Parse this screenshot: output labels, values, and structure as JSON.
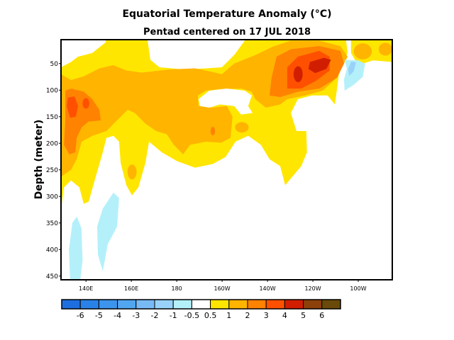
{
  "chart_data": {
    "type": "heatmap",
    "subtype": "filled-contour",
    "title": "Equatorial Temperature Anomaly (°C)",
    "subtitle": "Pentad centered on 17 JUL 2018",
    "xlabel": "",
    "ylabel": "Depth (meter)",
    "xlim": [
      129,
      275
    ],
    "ylim": [
      5,
      457
    ],
    "y_inverted": true,
    "x_ticks": [
      {
        "value": 140,
        "label": "140E"
      },
      {
        "value": 160,
        "label": "160E"
      },
      {
        "value": 180,
        "label": "180"
      },
      {
        "value": 200,
        "label": "160W"
      },
      {
        "value": 220,
        "label": "140W"
      },
      {
        "value": 240,
        "label": "120W"
      },
      {
        "value": 260,
        "label": "100W"
      }
    ],
    "y_ticks": [
      {
        "value": 50,
        "label": "50"
      },
      {
        "value": 100,
        "label": "100"
      },
      {
        "value": 150,
        "label": "150"
      },
      {
        "value": 200,
        "label": "200"
      },
      {
        "value": 250,
        "label": "250"
      },
      {
        "value": 300,
        "label": "300"
      },
      {
        "value": 350,
        "label": "350"
      },
      {
        "value": 400,
        "label": "400"
      },
      {
        "value": 450,
        "label": "450"
      }
    ],
    "colorbar": {
      "labels": [
        "-6",
        "-5",
        "-4",
        "-3",
        "-2",
        "-1",
        "-0.5",
        "0.5",
        "1",
        "2",
        "3",
        "4",
        "5",
        "6"
      ],
      "colors": [
        "#1f6ee0",
        "#2a82e8",
        "#3c94ec",
        "#52a6f0",
        "#78baf6",
        "#98d2fa",
        "#b4f0fa",
        "#ffffff",
        "#ffe600",
        "#ffb400",
        "#ff8200",
        "#ff5000",
        "#d21e00",
        "#8c400a",
        "#6a4a0a"
      ]
    },
    "regions": [
      {
        "level": "0.5 to 1",
        "color": "#ffe600",
        "shape": "polygon",
        "points": [
          [
            129,
            57
          ],
          [
            133.4,
            47
          ],
          [
            136.5,
            37
          ],
          [
            142.8,
            30
          ],
          [
            148.7,
            10
          ],
          [
            148.7,
            5
          ],
          [
            167.1,
            5
          ],
          [
            168.4,
            43
          ],
          [
            172.4,
            57
          ],
          [
            183.4,
            61
          ],
          [
            192.8,
            59
          ],
          [
            199.9,
            57
          ],
          [
            205.3,
            34
          ],
          [
            210.3,
            5
          ],
          [
            254.6,
            5
          ],
          [
            255.3,
            30
          ],
          [
            251.5,
            70
          ],
          [
            249.7,
            127
          ],
          [
            246.5,
            110
          ],
          [
            239.6,
            110
          ],
          [
            233.4,
            117
          ],
          [
            230.3,
            143
          ],
          [
            232.8,
            177
          ],
          [
            237.1,
            177
          ],
          [
            237.4,
            217
          ],
          [
            234.9,
            243
          ],
          [
            227.8,
            279
          ],
          [
            225.6,
            243
          ],
          [
            220.9,
            230
          ],
          [
            217.1,
            203
          ],
          [
            211.5,
            186
          ],
          [
            205.9,
            197
          ],
          [
            201.5,
            226
          ],
          [
            195.9,
            239
          ],
          [
            188.1,
            246
          ],
          [
            180.3,
            234
          ],
          [
            173.4,
            217
          ],
          [
            167.8,
            197
          ],
          [
            166.2,
            237
          ],
          [
            163.1,
            283
          ],
          [
            160.3,
            298
          ],
          [
            157.8,
            279
          ],
          [
            155.3,
            237
          ],
          [
            154.6,
            197
          ],
          [
            152.1,
            186
          ],
          [
            149,
            190
          ],
          [
            147.4,
            217
          ],
          [
            144.3,
            263
          ],
          [
            141.2,
            310
          ],
          [
            139,
            314
          ],
          [
            137.1,
            283
          ],
          [
            133.4,
            270
          ],
          [
            130.3,
            283
          ],
          [
            129,
            325
          ]
        ]
      },
      {
        "level": "0.5 to 1",
        "color": "#ffe600",
        "shape": "polygon",
        "points": [
          [
            256.8,
            5
          ],
          [
            275,
            5
          ],
          [
            275,
            47
          ],
          [
            266.5,
            44
          ],
          [
            259.9,
            53
          ],
          [
            256.8,
            30
          ]
        ]
      },
      {
        "level": "1 to 2",
        "color": "#ffb400",
        "shape": "polygon",
        "points": [
          [
            129,
            70
          ],
          [
            133.4,
            81
          ],
          [
            139,
            74
          ],
          [
            145.9,
            59
          ],
          [
            152.1,
            53
          ],
          [
            157.8,
            63
          ],
          [
            164.6,
            67
          ],
          [
            177.1,
            61
          ],
          [
            188.1,
            59
          ],
          [
            195.9,
            66
          ],
          [
            199.9,
            70
          ],
          [
            205.3,
            50
          ],
          [
            214.6,
            34
          ],
          [
            222.4,
            18
          ],
          [
            230.3,
            7
          ],
          [
            242.8,
            7
          ],
          [
            252.1,
            17
          ],
          [
            255.3,
            37
          ],
          [
            252.1,
            63
          ],
          [
            249,
            83
          ],
          [
            244.3,
            101
          ],
          [
            236.5,
            110
          ],
          [
            228.7,
            117
          ],
          [
            225.6,
            127
          ],
          [
            219.3,
            133
          ],
          [
            214.6,
            117
          ],
          [
            213.1,
            103
          ],
          [
            208.4,
            97
          ],
          [
            199,
            98
          ],
          [
            192.8,
            101
          ],
          [
            189.3,
            110
          ],
          [
            189.6,
            130
          ],
          [
            195.9,
            133
          ],
          [
            202.1,
            130
          ],
          [
            204.6,
            150
          ],
          [
            203.7,
            190
          ],
          [
            199.6,
            199
          ],
          [
            192.8,
            197
          ],
          [
            185.9,
            203
          ],
          [
            182.8,
            221
          ],
          [
            178.7,
            203
          ],
          [
            175.6,
            183
          ],
          [
            170.9,
            177
          ],
          [
            166.2,
            163
          ],
          [
            161.5,
            143
          ],
          [
            158.4,
            137
          ],
          [
            155.3,
            150
          ],
          [
            149,
            177
          ],
          [
            142.8,
            186
          ],
          [
            138.1,
            197
          ],
          [
            135.9,
            230
          ],
          [
            133.4,
            250
          ],
          [
            129,
            263
          ]
        ]
      },
      {
        "level": "< 0.5",
        "color": "#ffffff",
        "shape": "polygon",
        "points": [
          [
            189.6,
            117
          ],
          [
            194.3,
            101
          ],
          [
            202.1,
            97
          ],
          [
            210,
            101
          ],
          [
            213.1,
            110
          ],
          [
            211.5,
            130
          ],
          [
            213.4,
            143
          ],
          [
            208.4,
            146
          ],
          [
            205.3,
            130
          ],
          [
            199,
            127
          ],
          [
            194.3,
            133
          ],
          [
            190.3,
            130
          ]
        ]
      },
      {
        "level": "1 to 2",
        "color": "#ffb400",
        "shape": "ellipse",
        "center": [
          160.3,
          254
        ],
        "radius": [
          2,
          14
        ]
      },
      {
        "level": "1 to 2",
        "color": "#ffb400",
        "shape": "ellipse",
        "center": [
          208.7,
          170
        ],
        "radius": [
          3,
          10
        ]
      },
      {
        "level": "1 to 2",
        "color": "#ffb400",
        "shape": "ellipse",
        "center": [
          262,
          27
        ],
        "radius": [
          4,
          15
        ]
      },
      {
        "level": "1 to 2",
        "color": "#ffb400",
        "shape": "ellipse",
        "center": [
          272,
          23
        ],
        "radius": [
          3,
          12
        ]
      },
      {
        "level": "2 to 3",
        "color": "#ff8200",
        "shape": "polygon",
        "points": [
          [
            130.9,
            101
          ],
          [
            133.4,
            97
          ],
          [
            139,
            103
          ],
          [
            142.8,
            117
          ],
          [
            145.9,
            137
          ],
          [
            146.5,
            157
          ],
          [
            141.2,
            159
          ],
          [
            138.1,
            170
          ],
          [
            135.9,
            190
          ],
          [
            135.3,
            217
          ],
          [
            132.7,
            221
          ],
          [
            130.3,
            203
          ],
          [
            130.9,
            157
          ]
        ]
      },
      {
        "level": "2 to 3",
        "color": "#ff8200",
        "shape": "polygon",
        "points": [
          [
            224,
            37
          ],
          [
            230.3,
            23
          ],
          [
            242.8,
            17
          ],
          [
            252.1,
            26
          ],
          [
            253.7,
            50
          ],
          [
            250.6,
            77
          ],
          [
            242.8,
            97
          ],
          [
            233.4,
            103
          ],
          [
            225.6,
            113
          ],
          [
            220.9,
            110
          ],
          [
            221.8,
            77
          ]
        ]
      },
      {
        "level": "2 to 3",
        "color": "#ff8200",
        "shape": "ellipse",
        "center": [
          195.9,
          177
        ],
        "radius": [
          1,
          8
        ]
      },
      {
        "level": "3 to 4",
        "color": "#ff5000",
        "shape": "polygon",
        "points": [
          [
            132,
            114
          ],
          [
            135,
            112
          ],
          [
            136.5,
            130
          ],
          [
            135.5,
            150
          ],
          [
            133,
            152
          ],
          [
            131.5,
            130
          ]
        ]
      },
      {
        "level": "3 to 4",
        "color": "#ff5000",
        "shape": "ellipse",
        "center": [
          140,
          125
        ],
        "radius": [
          1.5,
          10
        ]
      },
      {
        "level": "3 to 4",
        "color": "#ff5000",
        "shape": "polygon",
        "points": [
          [
            228.7,
            57
          ],
          [
            233.4,
            37
          ],
          [
            242.8,
            26
          ],
          [
            247.4,
            37
          ],
          [
            247.4,
            63
          ],
          [
            241.2,
            83
          ],
          [
            234.9,
            97
          ],
          [
            228.7,
            97
          ]
        ]
      },
      {
        "level": "4 to 5",
        "color": "#d21e00",
        "shape": "ellipse",
        "center": [
          233.5,
          70
        ],
        "radius": [
          2,
          15
        ]
      },
      {
        "level": "4 to 5",
        "color": "#d21e00",
        "shape": "polygon",
        "points": [
          [
            238.7,
            47
          ],
          [
            245,
            39
          ],
          [
            248,
            43
          ],
          [
            246,
            60
          ],
          [
            241,
            68
          ],
          [
            238,
            60
          ]
        ]
      },
      {
        "level": "-1 to -0.5",
        "color": "#b4f0fa",
        "shape": "polygon",
        "points": [
          [
            133,
            457
          ],
          [
            132.5,
            400
          ],
          [
            134,
            350
          ],
          [
            136,
            338
          ],
          [
            138,
            360
          ],
          [
            138.5,
            420
          ],
          [
            137.5,
            457
          ]
        ]
      },
      {
        "level": "-1 to -0.5",
        "color": "#b4f0fa",
        "shape": "polygon",
        "points": [
          [
            152.1,
            293
          ],
          [
            154.6,
            303
          ],
          [
            153.7,
            357
          ],
          [
            149.6,
            390
          ],
          [
            147.4,
            441
          ],
          [
            145.3,
            410
          ],
          [
            144.9,
            357
          ],
          [
            147.4,
            323
          ]
        ]
      },
      {
        "level": "-1 to -0.5",
        "color": "#b4f0fa",
        "shape": "polygon",
        "points": [
          [
            254,
            43
          ],
          [
            260,
            44
          ],
          [
            263,
            50
          ],
          [
            262,
            75
          ],
          [
            258,
            90
          ],
          [
            254,
            101
          ],
          [
            253.7,
            80
          ],
          [
            255,
            60
          ]
        ]
      },
      {
        "level": "-2 to -1",
        "color": "#98d2fa",
        "shape": "polygon",
        "points": [
          [
            257,
            46
          ],
          [
            259,
            48
          ],
          [
            258,
            65
          ],
          [
            256,
            73
          ],
          [
            255.5,
            60
          ]
        ]
      }
    ]
  }
}
